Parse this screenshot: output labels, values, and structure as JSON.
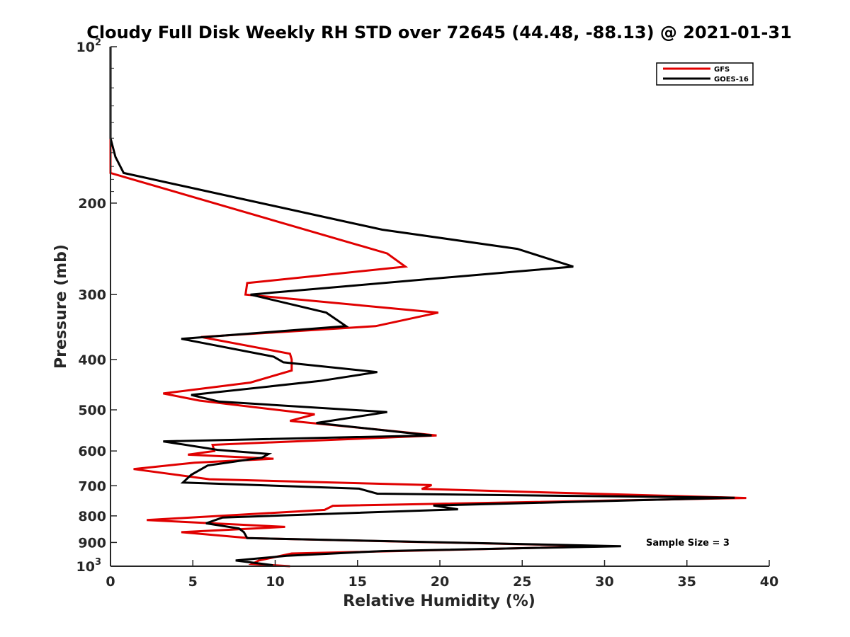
{
  "chart_data": {
    "type": "line",
    "title": "Cloudy Full Disk Weekly RH STD over 72645 (44.48, -88.13) @ 2021-01-31",
    "xlabel": "Relative Humidity (%)",
    "ylabel": "Pressure (mb)",
    "xlim": [
      0,
      40
    ],
    "ylim": [
      100,
      1000
    ],
    "y_scale": "log",
    "y_reversed": true,
    "x_ticks": [
      0,
      5,
      10,
      15,
      20,
      25,
      30,
      35,
      40
    ],
    "y_ticks": [
      {
        "value": 100,
        "base": "10",
        "exp": "2"
      },
      {
        "value": 200,
        "label": "200"
      },
      {
        "value": 300,
        "label": "300"
      },
      {
        "value": 400,
        "label": "400"
      },
      {
        "value": 500,
        "label": "500"
      },
      {
        "value": 600,
        "label": "600"
      },
      {
        "value": 700,
        "label": "700"
      },
      {
        "value": 800,
        "label": "800"
      },
      {
        "value": 900,
        "label": "900"
      },
      {
        "value": 1000,
        "base": "10",
        "exp": "3"
      }
    ],
    "grid": false,
    "legend_position": "top-right",
    "annotation": "Sample Size = 3",
    "series": [
      {
        "name": "GFS",
        "color": "#e00000",
        "points": [
          [
            0,
            100
          ],
          [
            0,
            125
          ],
          [
            0,
            150
          ],
          [
            0,
            175
          ],
          [
            16.8,
            250
          ],
          [
            17.9,
            265
          ],
          [
            8.3,
            285
          ],
          [
            8.2,
            300
          ],
          [
            19.9,
            325
          ],
          [
            16.1,
            345
          ],
          [
            5.5,
            362
          ],
          [
            10.9,
            390
          ],
          [
            11.0,
            400
          ],
          [
            11.0,
            420
          ],
          [
            8.5,
            443
          ],
          [
            3.2,
            465
          ],
          [
            5.4,
            480
          ],
          [
            12.4,
            510
          ],
          [
            10.9,
            525
          ],
          [
            19.8,
            560
          ],
          [
            6.2,
            584
          ],
          [
            6.3,
            600
          ],
          [
            4.7,
            610
          ],
          [
            9.9,
            621
          ],
          [
            5.1,
            632
          ],
          [
            1.4,
            650
          ],
          [
            6.0,
            680
          ],
          [
            19.5,
            698
          ],
          [
            18.9,
            710
          ],
          [
            38.6,
            739
          ],
          [
            13.5,
            765
          ],
          [
            13.0,
            779
          ],
          [
            2.2,
            815
          ],
          [
            10.6,
            840
          ],
          [
            4.3,
            860
          ],
          [
            8.4,
            883
          ],
          [
            30.2,
            915
          ],
          [
            11.0,
            945
          ],
          [
            9.0,
            975
          ],
          [
            8.6,
            990
          ],
          [
            10.9,
            1000
          ]
        ]
      },
      {
        "name": "GOES-16",
        "color": "#000000",
        "points": [
          [
            0,
            100
          ],
          [
            0,
            125
          ],
          [
            0,
            150
          ],
          [
            0.3,
            163
          ],
          [
            0.8,
            175
          ],
          [
            16.5,
            225
          ],
          [
            24.7,
            245
          ],
          [
            28.1,
            265
          ],
          [
            14.9,
            288
          ],
          [
            8.5,
            300
          ],
          [
            13.1,
            325
          ],
          [
            14.3,
            345
          ],
          [
            4.3,
            365
          ],
          [
            9.9,
            395
          ],
          [
            10.5,
            405
          ],
          [
            16.2,
            423
          ],
          [
            12.7,
            440
          ],
          [
            4.9,
            468
          ],
          [
            6.6,
            482
          ],
          [
            16.8,
            505
          ],
          [
            12.5,
            530
          ],
          [
            19.5,
            560
          ],
          [
            3.2,
            575
          ],
          [
            6.5,
            597
          ],
          [
            9.6,
            608
          ],
          [
            9.2,
            618
          ],
          [
            5.9,
            640
          ],
          [
            4.9,
            667
          ],
          [
            4.4,
            690
          ],
          [
            15.1,
            709
          ],
          [
            16.2,
            725
          ],
          [
            37.9,
            738
          ],
          [
            19.6,
            764
          ],
          [
            21.1,
            777
          ],
          [
            6.8,
            806
          ],
          [
            5.8,
            827
          ],
          [
            7.8,
            846
          ],
          [
            8.1,
            860
          ],
          [
            8.3,
            883
          ],
          [
            31.0,
            915
          ],
          [
            16.5,
            935
          ],
          [
            10.7,
            955
          ],
          [
            7.6,
            975
          ],
          [
            9.8,
            995
          ],
          [
            9.8,
            1000
          ]
        ]
      }
    ]
  }
}
